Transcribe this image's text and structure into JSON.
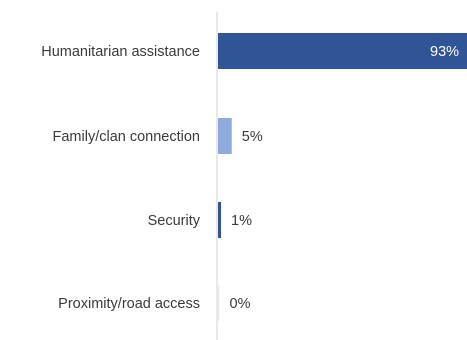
{
  "chart_data": {
    "type": "bar",
    "orientation": "horizontal",
    "categories": [
      "Humanitarian assistance",
      "Family/clan connection",
      "Security",
      "Proximity/road access"
    ],
    "values": [
      93,
      5,
      1,
      0
    ],
    "value_labels": [
      "93%",
      "5%",
      "1%",
      "0%"
    ],
    "colors": [
      "#2f5597",
      "#8faadc",
      "#2f5597",
      "#2f5597"
    ],
    "title": "",
    "xlabel": "",
    "ylabel": "",
    "grid": false,
    "legend": "none"
  }
}
